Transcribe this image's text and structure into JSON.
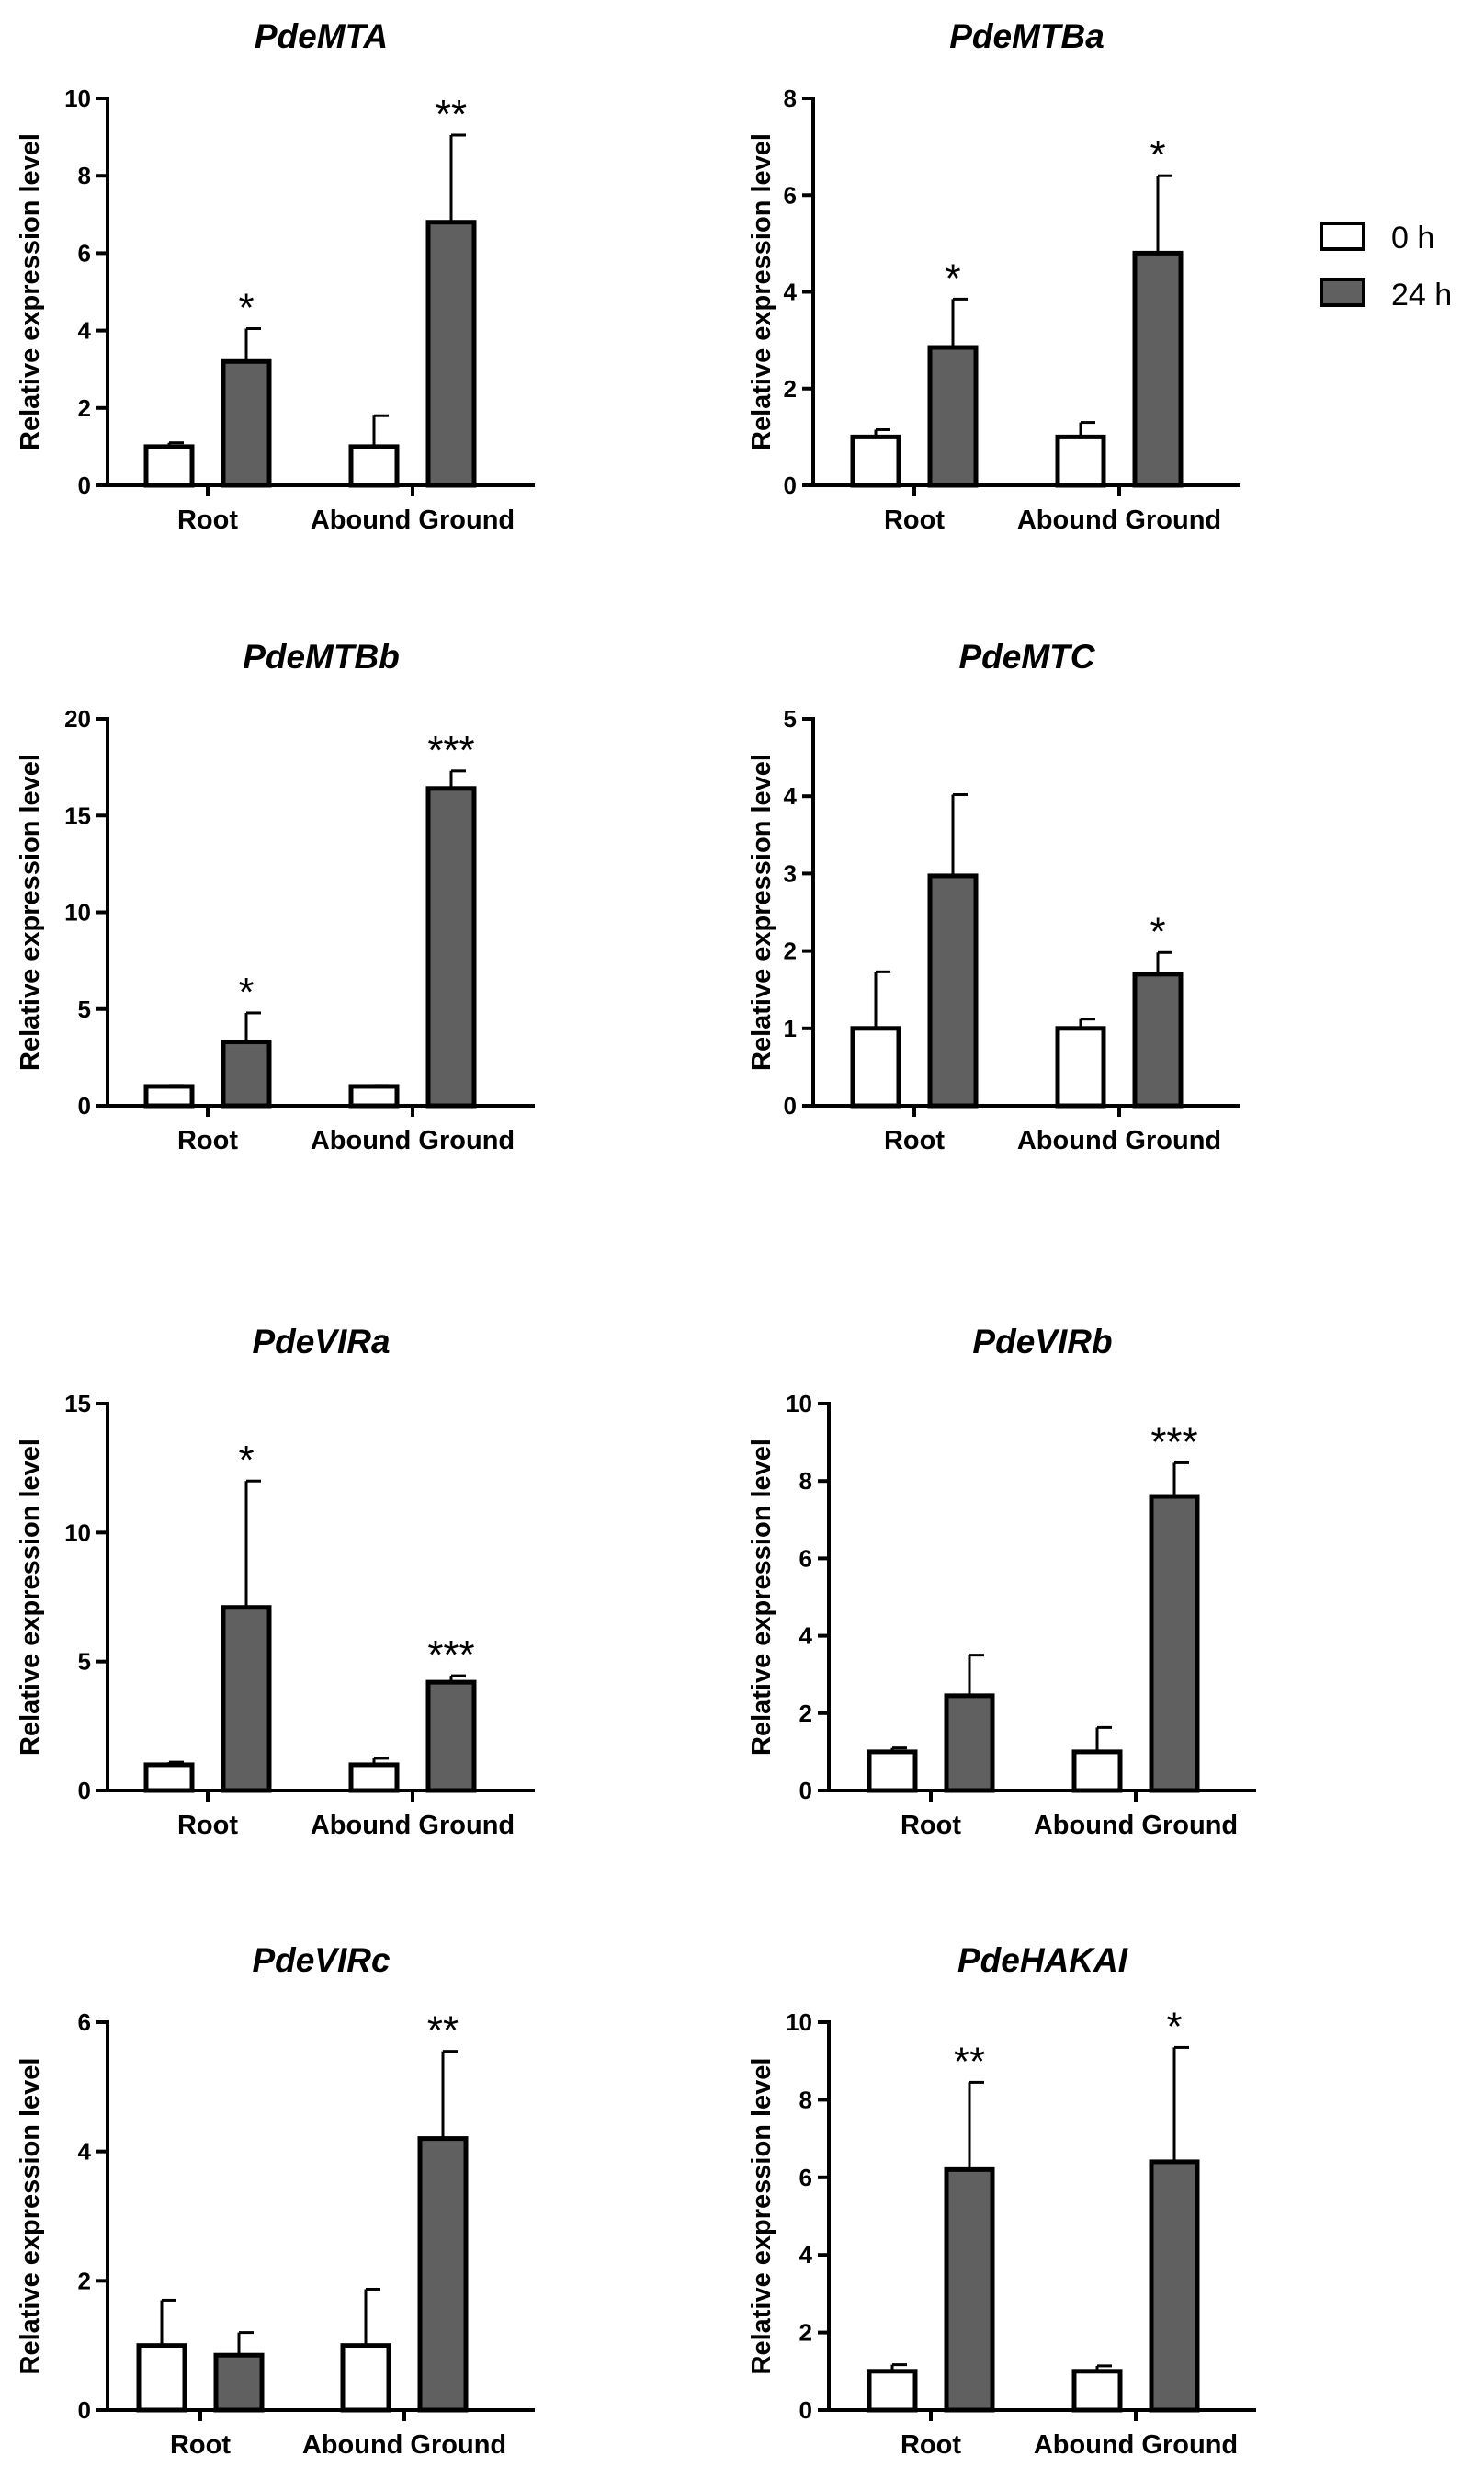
{
  "legend": {
    "entries": [
      {
        "label": "0 h",
        "color": "#ffffff"
      },
      {
        "label": "24 h",
        "color": "#606060"
      }
    ]
  },
  "chart_data": [
    {
      "type": "bar",
      "title": "PdeMTA",
      "categories": [
        "Root",
        "Abound Ground"
      ],
      "ylabel": "Relative expression level",
      "ylim": [
        0,
        10
      ],
      "yticks": [
        "0",
        "2",
        "4",
        "6",
        "8",
        "10"
      ],
      "series": [
        {
          "name": "0 h",
          "color": "#ffffff",
          "values": [
            1.0,
            1.0
          ],
          "errors": [
            0.1,
            0.8
          ]
        },
        {
          "name": "24 h",
          "color": "#606060",
          "values": [
            3.2,
            6.8
          ],
          "errors": [
            0.85,
            2.25
          ]
        }
      ],
      "significance": [
        "*",
        "**"
      ]
    },
    {
      "type": "bar",
      "title": "PdeMTBa",
      "categories": [
        "Root",
        "Abound Ground"
      ],
      "ylabel": "Relative expression level",
      "ylim": [
        0,
        8
      ],
      "yticks": [
        "0",
        "2",
        "4",
        "6",
        "8"
      ],
      "series": [
        {
          "name": "0 h",
          "color": "#ffffff",
          "values": [
            1.0,
            1.0
          ],
          "errors": [
            0.15,
            0.3
          ]
        },
        {
          "name": "24 h",
          "color": "#606060",
          "values": [
            2.85,
            4.8
          ],
          "errors": [
            1.0,
            1.6
          ]
        }
      ],
      "significance": [
        "*",
        "*"
      ]
    },
    {
      "type": "bar",
      "title": "PdeMTBb",
      "categories": [
        "Root",
        "Abound Ground"
      ],
      "ylabel": "Relative expression level",
      "ylim": [
        0,
        20
      ],
      "yticks": [
        "0",
        "5",
        "10",
        "15",
        "20"
      ],
      "series": [
        {
          "name": "0 h",
          "color": "#ffffff",
          "values": [
            1.0,
            1.0
          ],
          "errors": [
            0.05,
            0.05
          ]
        },
        {
          "name": "24 h",
          "color": "#606060",
          "values": [
            3.3,
            16.4
          ],
          "errors": [
            1.5,
            0.9
          ]
        }
      ],
      "significance": [
        "*",
        "***"
      ]
    },
    {
      "type": "bar",
      "title": "PdeMTC",
      "categories": [
        "Root",
        "Abound Ground"
      ],
      "ylabel": "Relative expression level",
      "ylim": [
        0,
        5
      ],
      "yticks": [
        "0",
        "1",
        "2",
        "3",
        "4",
        "5"
      ],
      "series": [
        {
          "name": "0 h",
          "color": "#ffffff",
          "values": [
            1.0,
            1.0
          ],
          "errors": [
            0.73,
            0.12
          ]
        },
        {
          "name": "24 h",
          "color": "#606060",
          "values": [
            2.97,
            1.7
          ],
          "errors": [
            1.05,
            0.28
          ]
        }
      ],
      "significance": [
        "",
        "*"
      ]
    },
    {
      "type": "bar",
      "title": "PdeVIRa",
      "categories": [
        "Root",
        "Abound Ground"
      ],
      "ylabel": "Relative expression level",
      "ylim": [
        0,
        15
      ],
      "yticks": [
        "0",
        "5",
        "10",
        "15"
      ],
      "series": [
        {
          "name": "0 h",
          "color": "#ffffff",
          "values": [
            1.0,
            1.0
          ],
          "errors": [
            0.1,
            0.25
          ]
        },
        {
          "name": "24 h",
          "color": "#606060",
          "values": [
            7.1,
            4.2
          ],
          "errors": [
            4.9,
            0.25
          ]
        }
      ],
      "significance": [
        "*",
        "***"
      ]
    },
    {
      "type": "bar",
      "title": "PdeVIRb",
      "categories": [
        "Root",
        "Abound Ground"
      ],
      "ylabel": "Relative expression level",
      "ylim": [
        0,
        10
      ],
      "yticks": [
        "0",
        "2",
        "4",
        "6",
        "8",
        "10"
      ],
      "series": [
        {
          "name": "0 h",
          "color": "#ffffff",
          "values": [
            1.0,
            1.0
          ],
          "errors": [
            0.1,
            0.63
          ]
        },
        {
          "name": "24 h",
          "color": "#606060",
          "values": [
            2.45,
            7.6
          ],
          "errors": [
            1.05,
            0.87
          ]
        }
      ],
      "significance": [
        "",
        "***"
      ]
    },
    {
      "type": "bar",
      "title": "PdeVIRc",
      "categories": [
        "Root",
        "Abound Ground"
      ],
      "ylabel": "Relative expression level",
      "ylim": [
        0,
        6
      ],
      "yticks": [
        "0",
        "2",
        "4",
        "6"
      ],
      "series": [
        {
          "name": "0 h",
          "color": "#ffffff",
          "values": [
            1.0,
            1.0
          ],
          "errors": [
            0.7,
            0.87
          ]
        },
        {
          "name": "24 h",
          "color": "#606060",
          "values": [
            0.85,
            4.2
          ],
          "errors": [
            0.35,
            1.35
          ]
        }
      ],
      "significance": [
        "",
        "**"
      ]
    },
    {
      "type": "bar",
      "title": "PdeHAKAI",
      "categories": [
        "Root",
        "Abound Ground"
      ],
      "ylabel": "Relative expression level",
      "ylim": [
        0,
        10
      ],
      "yticks": [
        "0",
        "2",
        "4",
        "6",
        "8",
        "10"
      ],
      "series": [
        {
          "name": "0 h",
          "color": "#ffffff",
          "values": [
            1.0,
            1.0
          ],
          "errors": [
            0.17,
            0.14
          ]
        },
        {
          "name": "24 h",
          "color": "#606060",
          "values": [
            6.2,
            6.4
          ],
          "errors": [
            2.25,
            2.95
          ]
        }
      ],
      "significance": [
        "**",
        "*"
      ]
    }
  ]
}
